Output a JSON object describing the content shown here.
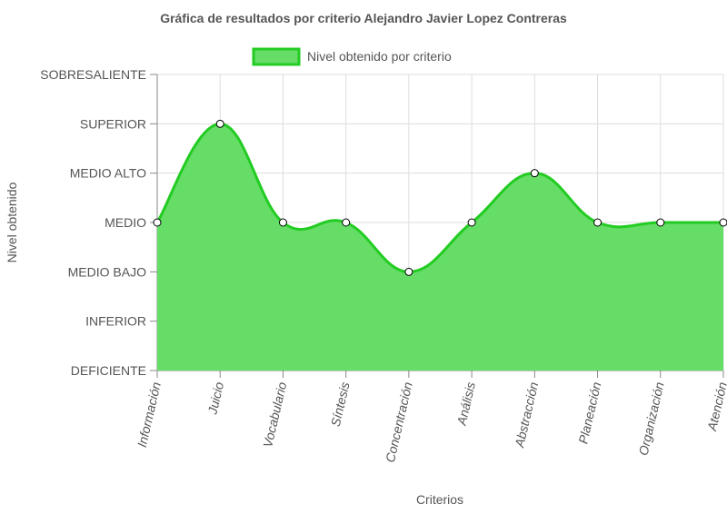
{
  "chart_data": {
    "type": "area",
    "title": "Gráfica de resultados por criterio Alejandro Javier Lopez Contreras",
    "xlabel": "Criterios",
    "ylabel": "Nivel obtenido",
    "legend": "top",
    "grid": true,
    "categories": [
      "Información",
      "Juicio",
      "Vocabulario",
      "Síntesis",
      "Concentración",
      "Análisis",
      "Abstracción",
      "Planeación",
      "Organización",
      "Atención"
    ],
    "y_levels": [
      "DEFICIENTE",
      "INFERIOR",
      "MEDIO BAJO",
      "MEDIO",
      "MEDIO ALTO",
      "SUPERIOR",
      "SOBRESALIENTE"
    ],
    "ylim": [
      0,
      6
    ],
    "series": [
      {
        "name": "Nivel obtenido por criterio",
        "values": [
          3,
          5,
          3,
          3,
          2,
          3,
          4,
          3,
          3,
          3
        ]
      }
    ],
    "colors": {
      "fill": "#66dd66",
      "line": "#22cc22",
      "point_fill": "#ffffff",
      "point_stroke": "#000000",
      "grid": "#dddddd",
      "axis": "#888888",
      "text": "#555555"
    }
  }
}
